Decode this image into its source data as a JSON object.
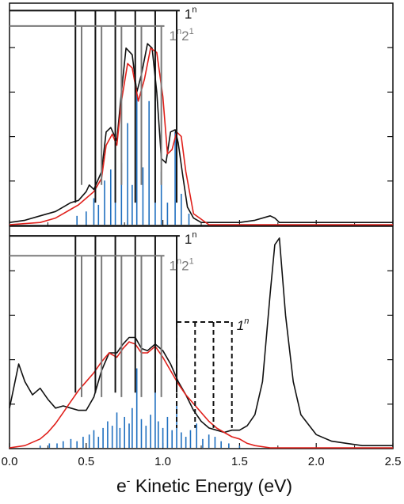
{
  "chart_data": [
    {
      "panel": "top",
      "type": "line",
      "xlabel": {
        "prefix": "e",
        "superscript": "-",
        "text": " Kinetic Energy (eV)"
      },
      "xlim": [
        0,
        2.5
      ],
      "ylim": [
        0,
        1
      ],
      "x_ticks": [
        "0.0",
        "0.5",
        "1.0",
        "1.5",
        "2.0",
        "2.5"
      ],
      "y_ticks_labeled": false,
      "colors": {
        "experiment": "#111111",
        "fit": "#e0201b",
        "sticks": "#1f6fbf",
        "progression_2": "#7a7a7a"
      },
      "series": [
        {
          "role": "experiment",
          "x": [
            0.0,
            0.1,
            0.2,
            0.3,
            0.35,
            0.4,
            0.45,
            0.5,
            0.52,
            0.55,
            0.6,
            0.63,
            0.66,
            0.7,
            0.73,
            0.76,
            0.8,
            0.83,
            0.86,
            0.9,
            0.93,
            0.96,
            0.99,
            1.02,
            1.05,
            1.08,
            1.1,
            1.13,
            1.16,
            1.2,
            1.25,
            1.3,
            1.4,
            1.5,
            1.6,
            1.7,
            1.73,
            1.76,
            1.8,
            1.9,
            2.0,
            2.1,
            2.2,
            2.3,
            2.4,
            2.5
          ],
          "y": [
            0.01,
            0.02,
            0.04,
            0.06,
            0.08,
            0.1,
            0.11,
            0.15,
            0.18,
            0.16,
            0.24,
            0.42,
            0.44,
            0.38,
            0.6,
            0.8,
            0.77,
            0.6,
            0.68,
            0.82,
            0.8,
            0.6,
            0.3,
            0.28,
            0.42,
            0.43,
            0.37,
            0.22,
            0.08,
            0.03,
            0.01,
            0.01,
            0.01,
            0.01,
            0.02,
            0.04,
            0.03,
            0.01,
            0.01,
            0.01,
            0.01,
            0.01,
            0.01,
            0.01,
            0.01,
            0.01
          ]
        },
        {
          "role": "fit",
          "x": [
            0.0,
            0.2,
            0.3,
            0.35,
            0.4,
            0.45,
            0.5,
            0.55,
            0.6,
            0.63,
            0.67,
            0.7,
            0.73,
            0.77,
            0.8,
            0.84,
            0.88,
            0.92,
            0.96,
            1.0,
            1.03,
            1.06,
            1.09,
            1.12,
            1.15,
            1.2,
            1.3,
            1.5,
            2.0,
            2.5
          ],
          "y": [
            0.0,
            0.01,
            0.03,
            0.05,
            0.07,
            0.09,
            0.12,
            0.15,
            0.21,
            0.36,
            0.41,
            0.36,
            0.56,
            0.73,
            0.71,
            0.56,
            0.66,
            0.8,
            0.78,
            0.58,
            0.32,
            0.34,
            0.42,
            0.4,
            0.24,
            0.05,
            0.0,
            0.0,
            0.0,
            0.0
          ]
        }
      ],
      "sticks": [
        {
          "x": 0.44,
          "y": 0.04
        },
        {
          "x": 0.5,
          "y": 0.06
        },
        {
          "x": 0.55,
          "y": 0.12
        },
        {
          "x": 0.58,
          "y": 0.09
        },
        {
          "x": 0.62,
          "y": 0.2
        },
        {
          "x": 0.66,
          "y": 0.25
        },
        {
          "x": 0.69,
          "y": 0.34
        },
        {
          "x": 0.73,
          "y": 0.28
        },
        {
          "x": 0.77,
          "y": 0.46
        },
        {
          "x": 0.8,
          "y": 0.18
        },
        {
          "x": 0.83,
          "y": 0.62
        },
        {
          "x": 0.87,
          "y": 0.26
        },
        {
          "x": 0.91,
          "y": 0.56
        },
        {
          "x": 0.95,
          "y": 0.74
        },
        {
          "x": 0.99,
          "y": 0.24
        },
        {
          "x": 1.03,
          "y": 0.1
        },
        {
          "x": 1.08,
          "y": 0.42
        },
        {
          "x": 1.12,
          "y": 0.14
        },
        {
          "x": 1.17,
          "y": 0.05
        }
      ],
      "progressions": [
        {
          "label_base": "1",
          "label_sup": "n",
          "color": "#111111",
          "dashed": false,
          "y_bracket": 0.97,
          "y_end": 0.1,
          "x_end": 1.11,
          "x": [
            0.43,
            0.56,
            0.69,
            0.82,
            0.95,
            1.09
          ]
        },
        {
          "label_base": "1",
          "label_sup": "n",
          "label_base2": "2",
          "label_sup2": "1",
          "color": "#7a7a7a",
          "dashed": false,
          "y_bracket": 0.9,
          "y_end": 0.18,
          "x_end": 1.01,
          "x": [
            0.47,
            0.6,
            0.73,
            0.86,
            0.99
          ]
        }
      ]
    },
    {
      "panel": "bottom",
      "type": "line",
      "xlim": [
        0,
        2.5
      ],
      "ylim": [
        0,
        1
      ],
      "x_ticks": [
        "0.0",
        "0.5",
        "1.0",
        "1.5",
        "2.0",
        "2.5"
      ],
      "series": [
        {
          "role": "experiment",
          "x": [
            0.0,
            0.03,
            0.06,
            0.1,
            0.15,
            0.2,
            0.25,
            0.3,
            0.35,
            0.4,
            0.45,
            0.5,
            0.55,
            0.6,
            0.65,
            0.7,
            0.74,
            0.78,
            0.82,
            0.86,
            0.9,
            0.95,
            1.0,
            1.05,
            1.1,
            1.15,
            1.2,
            1.25,
            1.3,
            1.35,
            1.4,
            1.45,
            1.5,
            1.55,
            1.6,
            1.65,
            1.7,
            1.73,
            1.76,
            1.8,
            1.85,
            1.9,
            2.0,
            2.1,
            2.2,
            2.3,
            2.4,
            2.5
          ],
          "y": [
            0.18,
            0.28,
            0.38,
            0.3,
            0.24,
            0.27,
            0.22,
            0.18,
            0.19,
            0.18,
            0.17,
            0.17,
            0.23,
            0.35,
            0.43,
            0.43,
            0.47,
            0.5,
            0.5,
            0.45,
            0.44,
            0.47,
            0.44,
            0.38,
            0.3,
            0.24,
            0.17,
            0.12,
            0.09,
            0.08,
            0.07,
            0.08,
            0.08,
            0.1,
            0.15,
            0.3,
            0.7,
            0.92,
            0.95,
            0.6,
            0.3,
            0.15,
            0.06,
            0.03,
            0.02,
            0.01,
            0.01,
            0.01
          ]
        },
        {
          "role": "fit",
          "x": [
            0.0,
            0.1,
            0.2,
            0.25,
            0.3,
            0.35,
            0.4,
            0.45,
            0.5,
            0.55,
            0.6,
            0.65,
            0.7,
            0.74,
            0.78,
            0.82,
            0.86,
            0.9,
            0.95,
            1.0,
            1.05,
            1.1,
            1.15,
            1.2,
            1.25,
            1.3,
            1.35,
            1.4,
            1.45,
            1.5,
            1.55,
            1.6,
            1.7,
            2.0,
            2.5
          ],
          "y": [
            0.0,
            0.01,
            0.04,
            0.07,
            0.11,
            0.16,
            0.21,
            0.26,
            0.3,
            0.34,
            0.39,
            0.43,
            0.41,
            0.45,
            0.48,
            0.47,
            0.43,
            0.43,
            0.46,
            0.41,
            0.35,
            0.29,
            0.24,
            0.2,
            0.16,
            0.12,
            0.09,
            0.07,
            0.05,
            0.04,
            0.02,
            0.01,
            0.0,
            0.0,
            0.0
          ]
        }
      ],
      "sticks": [
        {
          "x": 0.2,
          "y": 0.01
        },
        {
          "x": 0.26,
          "y": 0.02
        },
        {
          "x": 0.31,
          "y": 0.02
        },
        {
          "x": 0.35,
          "y": 0.03
        },
        {
          "x": 0.4,
          "y": 0.04
        },
        {
          "x": 0.44,
          "y": 0.03
        },
        {
          "x": 0.48,
          "y": 0.05
        },
        {
          "x": 0.52,
          "y": 0.06
        },
        {
          "x": 0.55,
          "y": 0.08
        },
        {
          "x": 0.58,
          "y": 0.05
        },
        {
          "x": 0.61,
          "y": 0.09
        },
        {
          "x": 0.64,
          "y": 0.12
        },
        {
          "x": 0.67,
          "y": 0.1
        },
        {
          "x": 0.7,
          "y": 0.16
        },
        {
          "x": 0.72,
          "y": 0.09
        },
        {
          "x": 0.75,
          "y": 0.14
        },
        {
          "x": 0.78,
          "y": 0.11
        },
        {
          "x": 0.8,
          "y": 0.18
        },
        {
          "x": 0.83,
          "y": 0.36
        },
        {
          "x": 0.86,
          "y": 0.13
        },
        {
          "x": 0.89,
          "y": 0.1
        },
        {
          "x": 0.92,
          "y": 0.15
        },
        {
          "x": 0.95,
          "y": 0.34
        },
        {
          "x": 0.97,
          "y": 0.12
        },
        {
          "x": 1.0,
          "y": 0.09
        },
        {
          "x": 1.03,
          "y": 0.14
        },
        {
          "x": 1.06,
          "y": 0.08
        },
        {
          "x": 1.09,
          "y": 0.19
        },
        {
          "x": 1.12,
          "y": 0.07
        },
        {
          "x": 1.15,
          "y": 0.05
        },
        {
          "x": 1.18,
          "y": 0.08
        },
        {
          "x": 1.22,
          "y": 0.11
        },
        {
          "x": 1.26,
          "y": 0.04
        },
        {
          "x": 1.3,
          "y": 0.06
        },
        {
          "x": 1.34,
          "y": 0.05
        },
        {
          "x": 1.38,
          "y": 0.03
        },
        {
          "x": 1.43,
          "y": 0.02
        },
        {
          "x": 1.5,
          "y": 0.01
        }
      ],
      "progressions": [
        {
          "label_base": "1",
          "label_sup": "n",
          "color": "#111111",
          "dashed": false,
          "y_bracket": 0.96,
          "y_end": 0.25,
          "x_end": 1.11,
          "x": [
            0.43,
            0.56,
            0.69,
            0.82,
            0.95,
            1.09
          ]
        },
        {
          "label_base": "1",
          "label_sup": "n",
          "label_base2": "2",
          "label_sup2": "1",
          "color": "#7a7a7a",
          "dashed": false,
          "y_bracket": 0.87,
          "y_end": 0.23,
          "x_end": 1.01,
          "x": [
            0.47,
            0.6,
            0.73,
            0.86,
            0.99
          ]
        },
        {
          "label_base": "1",
          "label_sup": "n",
          "italic": true,
          "color": "#111111",
          "dashed": true,
          "y_bracket": 0.57,
          "y_end": 0.09,
          "x_end": 1.45,
          "x": [
            1.09,
            1.21,
            1.33,
            1.45
          ]
        }
      ]
    }
  ]
}
